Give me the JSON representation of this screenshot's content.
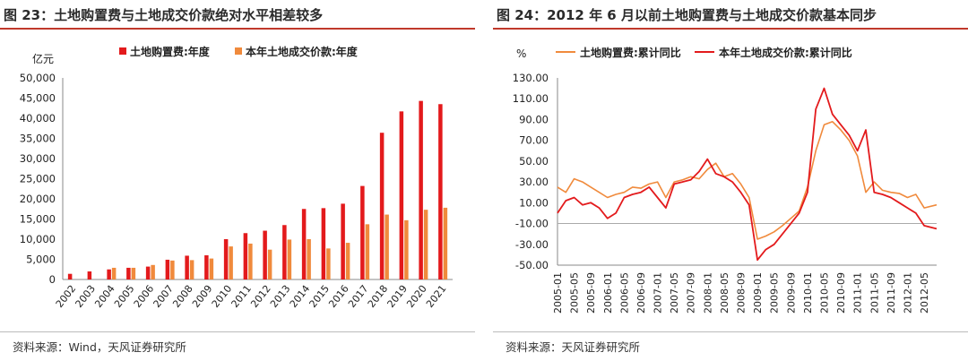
{
  "left": {
    "title": "图 23：土地购置费与土地成交价款绝对水平相差较多",
    "source": "资料来源：Wind，天风证券研究所",
    "colors": {
      "series1": "#e31a1c",
      "series2": "#f08a3c",
      "rule": "#c0392b"
    },
    "chart_data": {
      "type": "bar",
      "ylabel": "亿元",
      "ylim": [
        0,
        50000
      ],
      "yticks": [
        "0",
        "5,000",
        "10,000",
        "15,000",
        "20,000",
        "25,000",
        "30,000",
        "35,000",
        "40,000",
        "45,000",
        "50,000"
      ],
      "legend_position": "top",
      "categories": [
        "2002",
        "2003",
        "2004",
        "2005",
        "2006",
        "2007",
        "2008",
        "2009",
        "2010",
        "2011",
        "2012",
        "2013",
        "2014",
        "2015",
        "2016",
        "2017",
        "2018",
        "2019",
        "2020",
        "2021"
      ],
      "series": [
        {
          "name": "土地购置费:年度",
          "values": [
            1400,
            2000,
            2500,
            2900,
            3200,
            4900,
            5900,
            6000,
            10000,
            11500,
            12100,
            13500,
            17500,
            17700,
            18800,
            23200,
            36400,
            41700,
            44300,
            43500
          ]
        },
        {
          "name": "本年土地成交价款:年度",
          "values": [
            null,
            null,
            2900,
            2900,
            3600,
            4700,
            4800,
            5200,
            8200,
            8900,
            7400,
            9900,
            10000,
            7700,
            9100,
            13700,
            16100,
            14700,
            17300,
            17800
          ]
        }
      ]
    }
  },
  "right": {
    "title": "图 24：2012 年 6 月以前土地购置费与土地成交价款基本同步",
    "source": "资料来源：天风证券研究所",
    "colors": {
      "series1": "#f08a3c",
      "series2": "#e31a1c",
      "rule": "#c0392b"
    },
    "chart_data": {
      "type": "line",
      "ylabel": "%",
      "ylim": [
        -50,
        130
      ],
      "yticks": [
        "130.00",
        "110.00",
        "90.00",
        "70.00",
        "50.00",
        "30.00",
        "10.00",
        "-10.00",
        "-30.00",
        "-50.00"
      ],
      "legend_position": "top",
      "x_tick_labels": [
        "2005-01",
        "2005-05",
        "2005-09",
        "2006-01",
        "2006-05",
        "2006-09",
        "2007-01",
        "2007-05",
        "2007-09",
        "2008-01",
        "2008-05",
        "2008-09",
        "2009-01",
        "2009-05",
        "2009-09",
        "2010-01",
        "2010-05",
        "2010-09",
        "2011-01",
        "2011-05",
        "2011-09",
        "2012-01",
        "2012-05"
      ],
      "x_start": "2005-01",
      "x_end": "2012-08",
      "series": [
        {
          "name": "土地购置费:累计同比",
          "x": [
            "2005-01",
            "2005-03",
            "2005-05",
            "2005-07",
            "2005-09",
            "2005-11",
            "2006-01",
            "2006-03",
            "2006-05",
            "2006-07",
            "2006-09",
            "2006-11",
            "2007-01",
            "2007-03",
            "2007-05",
            "2007-07",
            "2007-09",
            "2007-11",
            "2008-01",
            "2008-03",
            "2008-05",
            "2008-07",
            "2008-09",
            "2008-11",
            "2009-01",
            "2009-03",
            "2009-05",
            "2009-07",
            "2009-09",
            "2009-11",
            "2010-01",
            "2010-03",
            "2010-05",
            "2010-07",
            "2010-09",
            "2010-11",
            "2011-01",
            "2011-03",
            "2011-05",
            "2011-07",
            "2011-09",
            "2011-11",
            "2012-01",
            "2012-03",
            "2012-05",
            "2012-08"
          ],
          "y": [
            25,
            20,
            33,
            30,
            25,
            20,
            15,
            18,
            20,
            25,
            24,
            28,
            30,
            15,
            30,
            32,
            35,
            33,
            42,
            48,
            35,
            38,
            28,
            15,
            -25,
            -22,
            -18,
            -12,
            -5,
            2,
            25,
            60,
            85,
            88,
            80,
            70,
            55,
            20,
            30,
            22,
            20,
            19,
            15,
            18,
            5,
            8
          ]
        },
        {
          "name": "本年土地成交价款:累计同比",
          "x": [
            "2005-01",
            "2005-03",
            "2005-05",
            "2005-07",
            "2005-09",
            "2005-11",
            "2006-01",
            "2006-03",
            "2006-05",
            "2006-07",
            "2006-09",
            "2006-11",
            "2007-01",
            "2007-03",
            "2007-05",
            "2007-07",
            "2007-09",
            "2007-11",
            "2008-01",
            "2008-03",
            "2008-05",
            "2008-07",
            "2008-09",
            "2008-11",
            "2009-01",
            "2009-03",
            "2009-05",
            "2009-07",
            "2009-09",
            "2009-11",
            "2010-01",
            "2010-03",
            "2010-05",
            "2010-07",
            "2010-09",
            "2010-11",
            "2011-01",
            "2011-03",
            "2011-05",
            "2011-07",
            "2011-09",
            "2011-11",
            "2012-01",
            "2012-03",
            "2012-05",
            "2012-08"
          ],
          "y": [
            0,
            12,
            15,
            8,
            10,
            5,
            -5,
            0,
            15,
            18,
            20,
            25,
            15,
            5,
            28,
            30,
            32,
            40,
            52,
            38,
            35,
            30,
            20,
            8,
            -45,
            -35,
            -30,
            -20,
            -10,
            0,
            20,
            100,
            120,
            95,
            85,
            75,
            60,
            80,
            20,
            18,
            15,
            10,
            5,
            0,
            -12,
            -15
          ]
        }
      ]
    }
  }
}
